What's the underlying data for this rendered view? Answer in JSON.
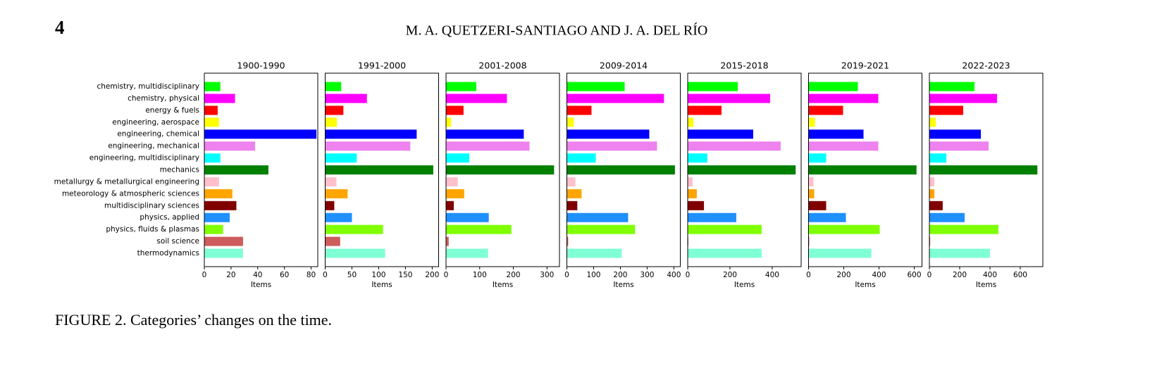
{
  "header": {
    "page_number": "4",
    "authors": "M. A. QUETZERI-SANTIAGO AND J. A. DEL RÍO"
  },
  "chart_data": [
    {
      "type": "barh",
      "title": "1900-1990",
      "xlabel": "Items",
      "categories": [
        "chemistry, multidisciplinary",
        "chemistry, physical",
        "energy & fuels",
        "engineering, aerospace",
        "engineering, chemical",
        "engineering, mechanical",
        "engineering, multidisciplinary",
        "mechanics",
        "metallurgy & metallurgical engineering",
        "meteorology & atmospheric sciences",
        "multidisciplinary sciences",
        "physics, applied",
        "physics, fluids & plasmas",
        "soil science",
        "thermodynamics"
      ],
      "values": [
        12,
        23,
        10,
        11,
        84,
        38,
        12,
        48,
        11,
        21,
        24,
        19,
        14,
        29,
        29
      ],
      "colors": [
        "#00ff00",
        "#ff00ff",
        "#ff0000",
        "#ffff00",
        "#0000ff",
        "#ee82ee",
        "#00ffff",
        "#008000",
        "#ffc0cb",
        "#ffa500",
        "#800000",
        "#1e90ff",
        "#7fff00",
        "#cd5c5c",
        "#7fffd4"
      ],
      "xlim": [
        0,
        85
      ],
      "xticks": [
        0,
        20,
        40,
        60,
        80
      ]
    },
    {
      "type": "barh",
      "title": "1991-2000",
      "xlabel": "Items",
      "values": [
        30,
        78,
        34,
        22,
        171,
        159,
        59,
        202,
        21,
        42,
        17,
        50,
        108,
        28,
        112
      ],
      "colors": [
        "#00ff00",
        "#ff00ff",
        "#ff0000",
        "#ffff00",
        "#0000ff",
        "#ee82ee",
        "#00ffff",
        "#008000",
        "#ffc0cb",
        "#ffa500",
        "#800000",
        "#1e90ff",
        "#7fff00",
        "#cd5c5c",
        "#7fffd4"
      ],
      "xlim": [
        0,
        212
      ],
      "xticks": [
        0,
        50,
        100,
        150,
        200
      ]
    },
    {
      "type": "barh",
      "title": "2001-2008",
      "xlabel": "Items",
      "values": [
        90,
        181,
        52,
        15,
        231,
        248,
        69,
        321,
        35,
        54,
        23,
        127,
        194,
        8,
        125
      ],
      "colors": [
        "#00ff00",
        "#ff00ff",
        "#ff0000",
        "#ffff00",
        "#0000ff",
        "#ee82ee",
        "#00ffff",
        "#008000",
        "#ffc0cb",
        "#ffa500",
        "#800000",
        "#1e90ff",
        "#7fff00",
        "#cd5c5c",
        "#7fffd4"
      ],
      "xlim": [
        0,
        337
      ],
      "xticks": [
        0,
        100,
        200,
        300
      ]
    },
    {
      "type": "barh",
      "title": "2009-2014",
      "xlabel": "Items",
      "values": [
        216,
        363,
        92,
        26,
        308,
        337,
        108,
        404,
        32,
        55,
        39,
        229,
        255,
        5,
        205
      ],
      "colors": [
        "#00ff00",
        "#ff00ff",
        "#ff0000",
        "#ffff00",
        "#0000ff",
        "#ee82ee",
        "#00ffff",
        "#008000",
        "#ffc0cb",
        "#ffa500",
        "#800000",
        "#1e90ff",
        "#7fff00",
        "#cd5c5c",
        "#7fffd4"
      ],
      "xlim": [
        0,
        424
      ],
      "xticks": [
        0,
        100,
        200,
        300,
        400
      ]
    },
    {
      "type": "barh",
      "title": "2015-2018",
      "xlabel": "Items",
      "values": [
        237,
        390,
        160,
        27,
        310,
        440,
        93,
        511,
        23,
        43,
        77,
        230,
        350,
        3,
        350
      ],
      "colors": [
        "#00ff00",
        "#ff00ff",
        "#ff0000",
        "#ffff00",
        "#0000ff",
        "#ee82ee",
        "#00ffff",
        "#008000",
        "#ffc0cb",
        "#ffa500",
        "#800000",
        "#1e90ff",
        "#7fff00",
        "#cd5c5c",
        "#7fffd4"
      ],
      "xlim": [
        0,
        537
      ],
      "xticks": [
        0,
        200,
        400
      ]
    },
    {
      "type": "barh",
      "title": "2019-2021",
      "xlabel": "Items",
      "values": [
        280,
        396,
        196,
        36,
        312,
        396,
        100,
        613,
        28,
        32,
        100,
        212,
        404,
        4,
        356
      ],
      "colors": [
        "#00ff00",
        "#ff00ff",
        "#ff0000",
        "#ffff00",
        "#0000ff",
        "#ee82ee",
        "#00ffff",
        "#008000",
        "#ffc0cb",
        "#ffa500",
        "#800000",
        "#1e90ff",
        "#7fff00",
        "#cd5c5c",
        "#7fffd4"
      ],
      "xlim": [
        0,
        644
      ],
      "xticks": [
        0,
        200,
        400,
        600
      ]
    },
    {
      "type": "barh",
      "title": "2022-2023",
      "xlabel": "Items",
      "values": [
        298,
        447,
        223,
        42,
        340,
        391,
        112,
        713,
        33,
        33,
        88,
        233,
        456,
        5,
        400
      ],
      "colors": [
        "#00ff00",
        "#ff00ff",
        "#ff0000",
        "#ffff00",
        "#0000ff",
        "#ee82ee",
        "#00ffff",
        "#008000",
        "#ffc0cb",
        "#ffa500",
        "#800000",
        "#1e90ff",
        "#7fff00",
        "#cd5c5c",
        "#7fffd4"
      ],
      "xlim": [
        0,
        749
      ],
      "xticks": [
        0,
        200,
        400,
        600
      ]
    }
  ],
  "caption": "FIGURE 2. Categories’ changes on the time."
}
